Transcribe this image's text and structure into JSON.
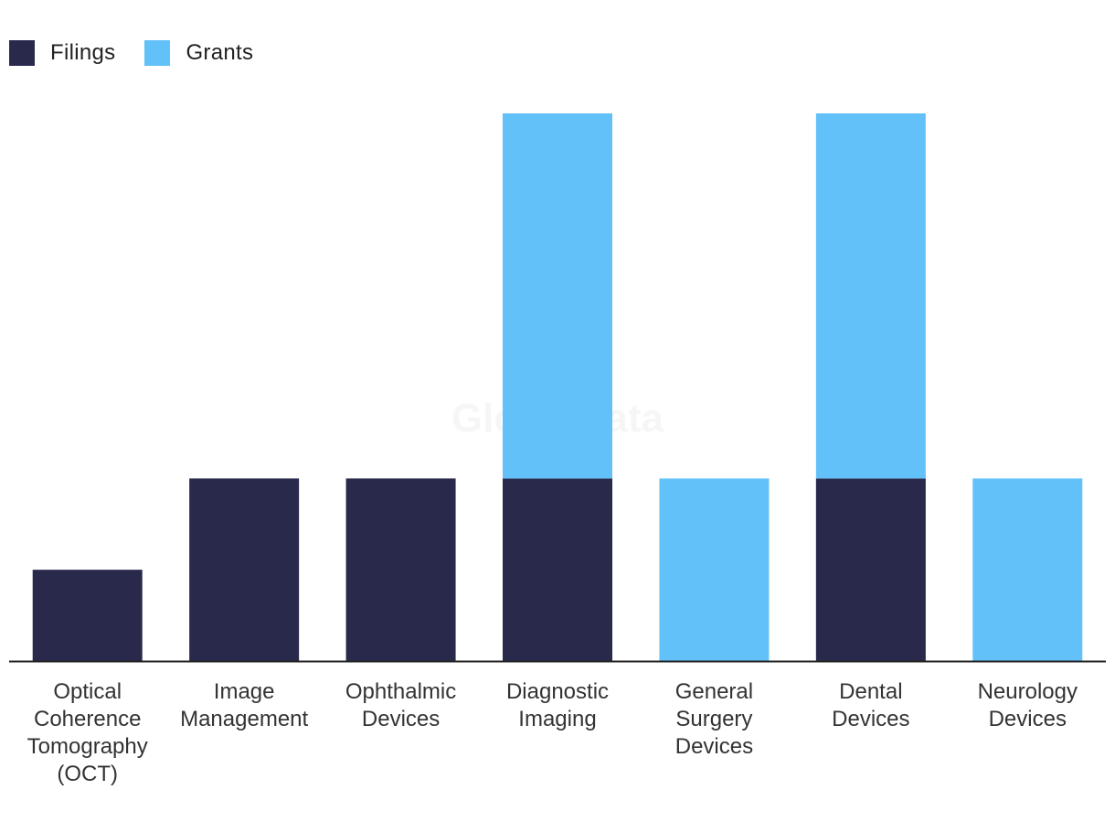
{
  "legend": {
    "filings_label": "Filings",
    "grants_label": "Grants"
  },
  "watermark": "GlobalData",
  "colors": {
    "filings": "#28294B",
    "grants": "#63C1F9",
    "axis": "#222222"
  },
  "chart_data": {
    "type": "bar",
    "stacked": true,
    "categories": [
      [
        "Optical",
        "Coherence",
        "Tomography",
        "(OCT)"
      ],
      [
        "Image",
        "Management"
      ],
      [
        "Ophthalmic",
        "Devices"
      ],
      [
        "Diagnostic",
        "Imaging"
      ],
      [
        "General",
        "Surgery",
        "Devices"
      ],
      [
        "Dental",
        "Devices"
      ],
      [
        "Neurology",
        "Devices"
      ]
    ],
    "series": [
      {
        "name": "Filings",
        "values": [
          1,
          2,
          2,
          2,
          0,
          2,
          0
        ]
      },
      {
        "name": "Grants",
        "values": [
          0,
          0,
          0,
          4,
          2,
          4,
          2
        ]
      }
    ],
    "ylim": [
      0,
      6
    ],
    "grid": false,
    "legend_position": "top-left"
  }
}
